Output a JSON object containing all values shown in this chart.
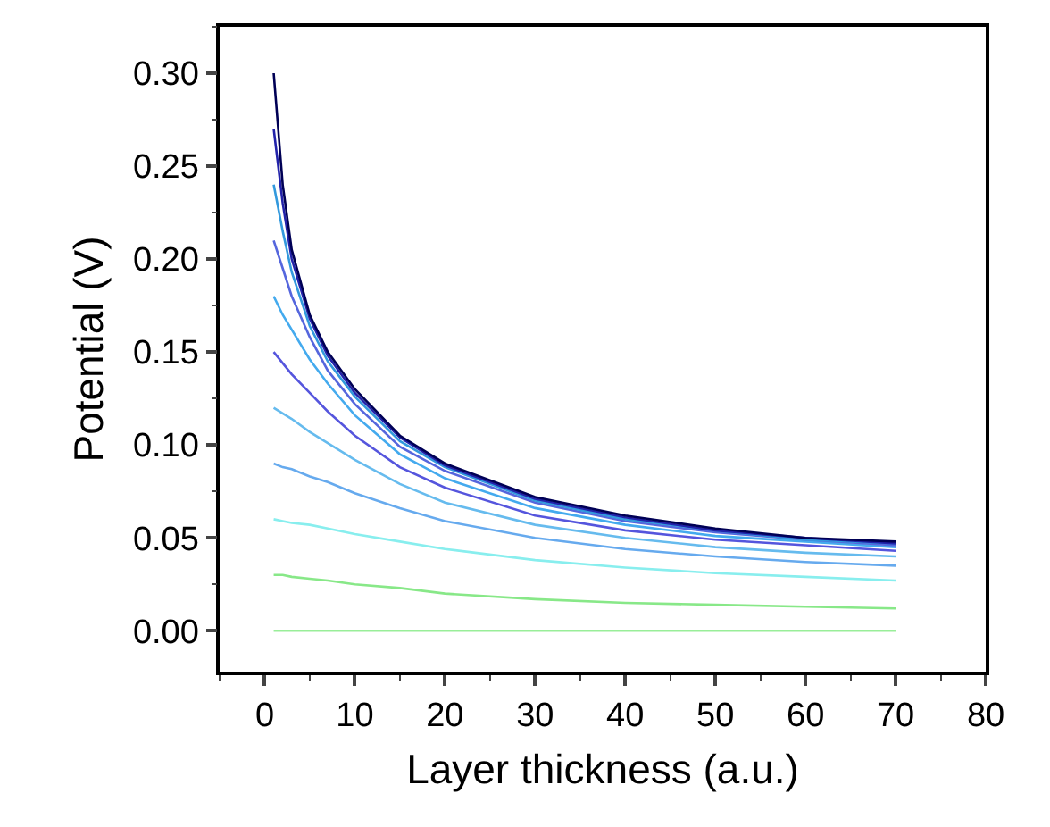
{
  "chart_data": {
    "type": "line",
    "xlabel": "Layer thickness (a.u.)",
    "ylabel": "Potential (V)",
    "x": [
      1,
      2,
      3,
      5,
      7,
      10,
      15,
      20,
      30,
      40,
      50,
      60,
      70
    ],
    "xlim": [
      -5,
      80
    ],
    "xticks": [
      0,
      10,
      20,
      30,
      40,
      50,
      60,
      70,
      80
    ],
    "ylim": [
      -0.022,
      0.325
    ],
    "yticks": [
      {
        "value": 0,
        "label": "0.00"
      },
      0.05,
      {
        "value": 0.1,
        "label": "0.10"
      },
      0.15,
      {
        "value": 0.2,
        "label": "0.20"
      },
      0.25,
      {
        "value": 0.3,
        "label": "0.30"
      }
    ],
    "grid": false,
    "line_style": "solid",
    "series": [
      {
        "color": "#99ee99",
        "values": [
          0,
          0,
          0,
          0,
          0,
          0,
          0,
          0,
          0,
          0,
          0,
          0,
          0
        ]
      },
      {
        "color": "#88e888",
        "values": [
          0.03,
          0.03,
          0.029,
          0.028,
          0.027,
          0.025,
          0.023,
          0.02,
          0.017,
          0.015,
          0.014,
          0.013,
          0.012
        ]
      },
      {
        "color": "#88eeee",
        "values": [
          0.06,
          0.059,
          0.058,
          0.057,
          0.055,
          0.052,
          0.048,
          0.044,
          0.038,
          0.034,
          0.031,
          0.029,
          0.027
        ]
      },
      {
        "color": "#66aaee",
        "values": [
          0.09,
          0.088,
          0.087,
          0.083,
          0.08,
          0.074,
          0.066,
          0.059,
          0.05,
          0.044,
          0.04,
          0.037,
          0.035
        ]
      },
      {
        "color": "#66bbee",
        "values": [
          0.12,
          0.117,
          0.114,
          0.107,
          0.101,
          0.092,
          0.079,
          0.069,
          0.057,
          0.05,
          0.045,
          0.042,
          0.04
        ]
      },
      {
        "color": "#5555dd",
        "values": [
          0.15,
          0.144,
          0.138,
          0.128,
          0.118,
          0.105,
          0.088,
          0.077,
          0.062,
          0.054,
          0.049,
          0.046,
          0.043
        ]
      },
      {
        "color": "#44aaee",
        "values": [
          0.18,
          0.17,
          0.162,
          0.146,
          0.133,
          0.116,
          0.095,
          0.082,
          0.066,
          0.057,
          0.051,
          0.048,
          0.045
        ]
      },
      {
        "color": "#5566dd",
        "values": [
          0.21,
          0.195,
          0.18,
          0.158,
          0.14,
          0.122,
          0.099,
          0.086,
          0.069,
          0.059,
          0.053,
          0.049,
          0.046
        ]
      },
      {
        "color": "#3399dd",
        "values": [
          0.24,
          0.215,
          0.193,
          0.164,
          0.145,
          0.126,
          0.102,
          0.088,
          0.07,
          0.06,
          0.054,
          0.049,
          0.047
        ]
      },
      {
        "color": "#2222aa",
        "values": [
          0.27,
          0.23,
          0.2,
          0.168,
          0.148,
          0.128,
          0.104,
          0.089,
          0.071,
          0.061,
          0.054,
          0.05,
          0.047
        ]
      },
      {
        "color": "#000055",
        "values": [
          0.3,
          0.24,
          0.205,
          0.17,
          0.15,
          0.13,
          0.105,
          0.09,
          0.072,
          0.062,
          0.055,
          0.05,
          0.048
        ]
      }
    ]
  }
}
